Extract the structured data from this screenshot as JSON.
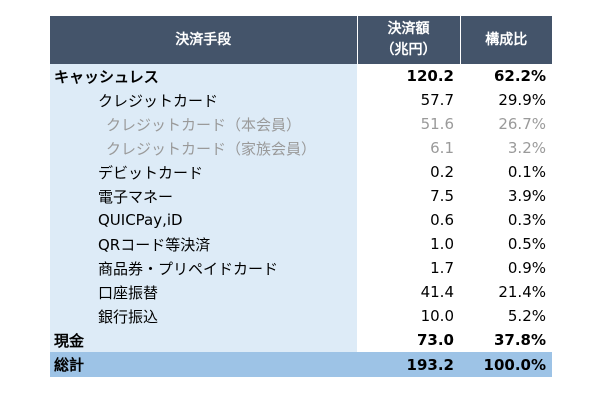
{
  "table": {
    "headers": {
      "method": "決済手段",
      "amount_line1": "決済額",
      "amount_line2": "（兆円）",
      "ratio": "構成比"
    },
    "rows": [
      {
        "label": "キャッシュレス",
        "amount": "120.2",
        "ratio": "62.2%",
        "level": 0,
        "bold": true
      },
      {
        "label": "クレジットカード",
        "amount": "57.7",
        "ratio": "29.9%",
        "level": 1,
        "bold": false
      },
      {
        "label": "クレジットカード（本会員）",
        "amount": "51.6",
        "ratio": "26.7%",
        "level": 2,
        "bold": false
      },
      {
        "label": "クレジットカード（家族会員）",
        "amount": "6.1",
        "ratio": "3.2%",
        "level": 2,
        "bold": false
      },
      {
        "label": "デビットカード",
        "amount": "0.2",
        "ratio": "0.1%",
        "level": 1,
        "bold": false
      },
      {
        "label": "電子マネー",
        "amount": "7.5",
        "ratio": "3.9%",
        "level": 1,
        "bold": false
      },
      {
        "label": "QUICPay,iD",
        "amount": "0.6",
        "ratio": "0.3%",
        "level": 1,
        "bold": false
      },
      {
        "label": "QRコード等決済",
        "amount": "1.0",
        "ratio": "0.5%",
        "level": 1,
        "bold": false
      },
      {
        "label": "商品券・プリペイドカード",
        "amount": "1.7",
        "ratio": "0.9%",
        "level": 1,
        "bold": false
      },
      {
        "label": "口座振替",
        "amount": "41.4",
        "ratio": "21.4%",
        "level": 1,
        "bold": false
      },
      {
        "label": "銀行振込",
        "amount": "10.0",
        "ratio": "5.2%",
        "level": 1,
        "bold": false
      },
      {
        "label": "現金",
        "amount": "73.0",
        "ratio": "37.8%",
        "level": 0,
        "bold": true
      }
    ],
    "total": {
      "label": "総計",
      "amount": "193.2",
      "ratio": "100.0%"
    },
    "colors": {
      "header_bg": "#44546a",
      "label_bg": "#ddebf7",
      "total_bg": "#9dc3e6",
      "sub_text": "#9a9a9a"
    }
  }
}
